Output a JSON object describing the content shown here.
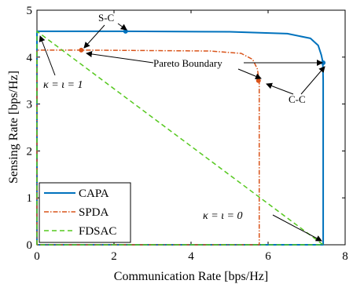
{
  "chart_data": {
    "type": "line",
    "xlabel": "Communication Rate [bps/Hz]",
    "ylabel": "Sensing Rate [bps/Hz]",
    "xlim": [
      0,
      8
    ],
    "ylim": [
      0,
      5
    ],
    "xticks": [
      "0",
      "2",
      "4",
      "6",
      "8"
    ],
    "yticks": [
      "0",
      "1",
      "2",
      "3",
      "4",
      "5"
    ],
    "grid": false,
    "legend_position": "bottom-left",
    "series": [
      {
        "name": "CAPA",
        "color": "#0072BD",
        "dash": "solid",
        "x": [
          0,
          0,
          2.3,
          5.0,
          6.5,
          7.1,
          7.3,
          7.38,
          7.42,
          7.43,
          7.43,
          0
        ],
        "y": [
          0,
          4.55,
          4.55,
          4.54,
          4.5,
          4.4,
          4.25,
          4.05,
          3.9,
          3.5,
          0,
          0
        ]
      },
      {
        "name": "SPDA",
        "color": "#D95319",
        "dash": "dashdot",
        "x": [
          0,
          0,
          1.15,
          4.5,
          5.3,
          5.6,
          5.72,
          5.77,
          5.77,
          0
        ],
        "y": [
          0,
          4.15,
          4.15,
          4.13,
          4.08,
          3.95,
          3.75,
          3.5,
          0,
          0
        ]
      },
      {
        "name": "FDSAC",
        "color": "#55C81E",
        "dash": "dashed",
        "x": [
          0,
          0,
          7.43,
          0
        ],
        "y": [
          0,
          4.55,
          0,
          0
        ]
      }
    ],
    "markers": [
      {
        "x": 2.3,
        "y": 4.55,
        "color": "#0072BD"
      },
      {
        "x": 7.43,
        "y": 3.88,
        "color": "#0072BD"
      },
      {
        "x": 1.15,
        "y": 4.15,
        "color": "#D95319"
      },
      {
        "x": 5.75,
        "y": 3.5,
        "color": "#D95319"
      }
    ],
    "annotations": [
      {
        "text": "S-C"
      },
      {
        "text": "Pareto Boundary"
      },
      {
        "text": "C-C"
      },
      {
        "text": "κ = ι = 1"
      },
      {
        "text": "κ = ι = 0"
      }
    ]
  }
}
